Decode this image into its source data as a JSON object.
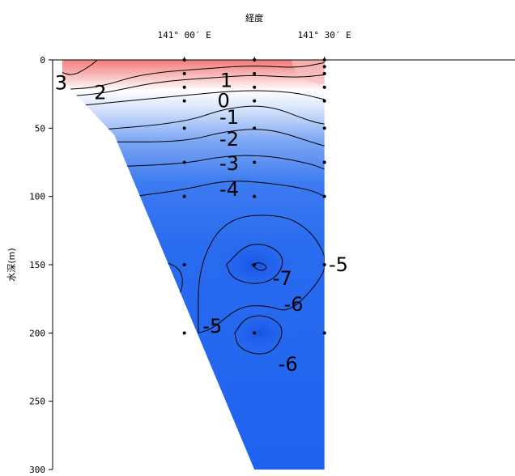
{
  "chart_data": {
    "type": "heatmap",
    "subtype": "oceanographic vertical section (temperature contour)",
    "title": "",
    "xlabel": "経度",
    "ylabel": "水深(m)",
    "x_ticks": [
      {
        "value": 141.0,
        "label": "141° 00′ E"
      },
      {
        "value": 141.5,
        "label": "141° 30′ E"
      }
    ],
    "y_ticks": [
      0,
      50,
      100,
      150,
      200,
      250,
      300
    ],
    "ylim": [
      0,
      300
    ],
    "y_inverted": true,
    "xlim": [
      140.53,
      142.18
    ],
    "stations": [
      {
        "lon": 141.0,
        "bottom_depth": 200,
        "sample_depths": [
          0,
          10,
          20,
          30,
          50,
          75,
          100,
          150,
          200
        ]
      },
      {
        "lon": 141.25,
        "bottom_depth": 300,
        "sample_depths": [
          0,
          10,
          20,
          30,
          50,
          75,
          100,
          150,
          200
        ]
      },
      {
        "lon": 141.5,
        "bottom_depth": 300,
        "sample_depths": [
          0,
          5,
          10,
          20,
          30,
          50,
          75,
          100,
          150,
          200
        ]
      }
    ],
    "contour_levels": [
      3,
      2,
      1,
      0,
      -1,
      -2,
      -3,
      -4,
      -5,
      -6,
      -7
    ],
    "contour_labels": [
      {
        "text": "3",
        "lon": 140.56,
        "depth": 17
      },
      {
        "text": "2",
        "lon": 140.7,
        "depth": 24
      },
      {
        "text": "1",
        "lon": 141.15,
        "depth": 15
      },
      {
        "text": "0",
        "lon": 141.14,
        "depth": 30
      },
      {
        "text": "-1",
        "lon": 141.16,
        "depth": 42
      },
      {
        "text": "-2",
        "lon": 141.16,
        "depth": 58
      },
      {
        "text": "-3",
        "lon": 141.16,
        "depth": 76
      },
      {
        "text": "-4",
        "lon": 141.16,
        "depth": 95
      },
      {
        "text": "-5",
        "lon": 141.55,
        "depth": 150
      },
      {
        "text": "-7",
        "lon": 141.35,
        "depth": 160
      },
      {
        "text": "-6",
        "lon": 141.39,
        "depth": 179
      },
      {
        "text": "-5",
        "lon": 141.1,
        "depth": 195
      },
      {
        "text": "-6",
        "lon": 141.37,
        "depth": 223
      }
    ],
    "colormap": {
      "warm": "#f47a7a",
      "neutral": "#ffffff",
      "cold": "#1e66f0",
      "deep": "#1a5cef"
    }
  }
}
